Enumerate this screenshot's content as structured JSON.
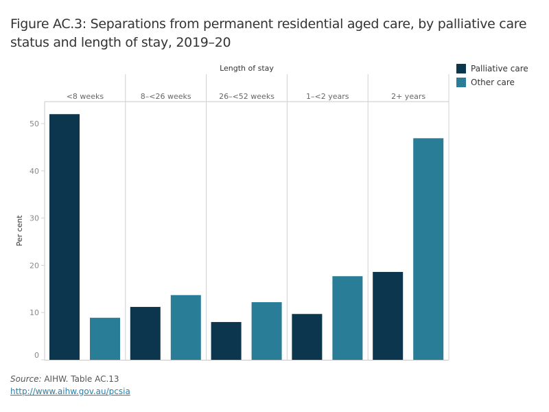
{
  "title": "Figure AC.3: Separations from permanent residential aged care, by palliative care status and length of stay, 2019–20",
  "legend": [
    {
      "label": "Palliative care",
      "color": "#0b364e"
    },
    {
      "label": "Other care",
      "color": "#2a7d97"
    }
  ],
  "source_label": "Source:",
  "source_text": " AIHW. Table AC.13",
  "link_text": "http://www.aihw.gov.au/pcsia",
  "chart_data": {
    "type": "bar",
    "title": "Figure AC.3: Separations from permanent residential aged care, by palliative care status and length of stay, 2019–20",
    "column_header": "Length of stay",
    "categories": [
      "<8 weeks",
      "8–<26 weeks",
      "26–<52 weeks",
      "1–<2 years",
      "2+ years"
    ],
    "series": [
      {
        "name": "Palliative care",
        "color": "#0b364e",
        "values": [
          52.0,
          11.2,
          8.0,
          9.7,
          18.6
        ]
      },
      {
        "name": "Other care",
        "color": "#2a7d97",
        "values": [
          8.9,
          13.7,
          12.2,
          17.7,
          46.9
        ]
      }
    ],
    "xlabel": "",
    "ylabel": "Per cent",
    "ylim": [
      0,
      52.5
    ],
    "yticks": [
      0,
      10,
      20,
      30,
      40,
      50
    ],
    "grid": false,
    "legend_position": "top-right"
  }
}
